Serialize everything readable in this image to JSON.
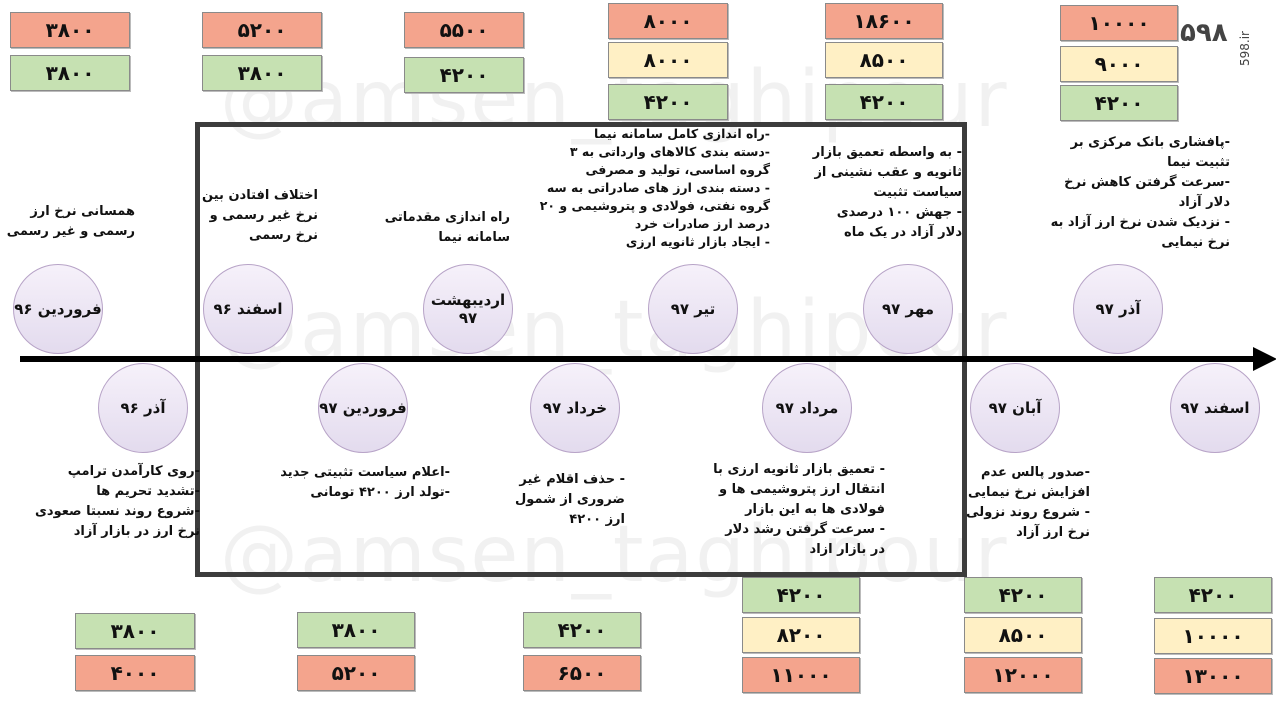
{
  "brand": {
    "logo": "۵۹۸",
    "site": "598.ir"
  },
  "events_top": [
    {
      "date": "فروردین ۹۶",
      "notes": [
        "همسانی نرخ ارز",
        "رسمی و غیر رسمی"
      ],
      "rates": [
        {
          "value": "۳۸۰۰",
          "color": "red"
        },
        {
          "value": "۳۸۰۰",
          "color": "green"
        }
      ]
    },
    {
      "date": "اسفند ۹۶",
      "notes": [
        "اختلاف افتادن بین",
        "نرخ غیر رسمی و",
        "نرخ رسمی"
      ],
      "rates": [
        {
          "value": "۵۲۰۰",
          "color": "red"
        },
        {
          "value": "۳۸۰۰",
          "color": "green"
        }
      ]
    },
    {
      "date": "اردیبهشت ۹۷",
      "notes": [
        "راه اندازی مقدماتی",
        "سامانه نیما"
      ],
      "rates": [
        {
          "value": "۵۵۰۰",
          "color": "red"
        },
        {
          "value": "۴۲۰۰",
          "color": "green"
        }
      ]
    },
    {
      "date": "تیر ۹۷",
      "notes": [
        "-راه اندازی کامل سامانه نیما",
        "-دسته بندی کالاهای وارداتی به ۳",
        "گروه اساسی، تولید و مصرفی",
        "- دسته بندی ارز های صادراتی به سه",
        "گروه نفتی، فولادی و پتروشیمی و ۲۰",
        "درصد ارز صادرات خرد",
        "- ایجاد بازار ثانویه ارزی"
      ],
      "rates": [
        {
          "value": "۸۰۰۰",
          "color": "red"
        },
        {
          "value": "۸۰۰۰",
          "color": "yellow"
        },
        {
          "value": "۴۲۰۰",
          "color": "green"
        }
      ]
    },
    {
      "date": "مهر ۹۷",
      "notes": [
        "- به واسطه تعمیق بازار",
        "ثانویه و عقب نشینی از",
        "سیاست تثبیت",
        "- جهش ۱۰۰ درصدی",
        "دلار آزاد در یک ماه"
      ],
      "rates": [
        {
          "value": "۱۸۶۰۰",
          "color": "red"
        },
        {
          "value": "۸۵۰۰",
          "color": "yellow"
        },
        {
          "value": "۴۲۰۰",
          "color": "green"
        }
      ]
    },
    {
      "date": "آذر ۹۷",
      "notes": [
        "-پافشاری بانک مرکزی بر",
        "تثبیت نیما",
        "-سرعت گرفتن کاهش نرخ",
        "دلار آزاد",
        "- نزدیک شدن نرخ ارز آزاد به",
        "نرخ نیمایی"
      ],
      "rates": [
        {
          "value": "۱۰۰۰۰",
          "color": "red"
        },
        {
          "value": "۹۰۰۰",
          "color": "yellow"
        },
        {
          "value": "۴۲۰۰",
          "color": "green"
        }
      ]
    }
  ],
  "events_bottom": [
    {
      "date": "آذر ۹۶",
      "notes": [
        "-روی کارآمدن ترامپ",
        "-تشدید تحریم ها",
        "-شروع روند نسبتا صعودی",
        "نرخ ارز در بازار آزاد"
      ],
      "rates": [
        {
          "value": "۳۸۰۰",
          "color": "green"
        },
        {
          "value": "۴۰۰۰",
          "color": "red"
        }
      ]
    },
    {
      "date": "فروردین ۹۷",
      "notes": [
        "-اعلام سیاست تثبیتی جدید",
        "-تولد ارز ۴۲۰۰ تومانی"
      ],
      "rates": [
        {
          "value": "۳۸۰۰",
          "color": "green"
        },
        {
          "value": "۵۲۰۰",
          "color": "red"
        }
      ]
    },
    {
      "date": "خرداد ۹۷",
      "notes": [
        "- حذف اقلام غیر",
        "ضروری از شمول",
        "ارز ۴۲۰۰"
      ],
      "rates": [
        {
          "value": "۴۲۰۰",
          "color": "green"
        },
        {
          "value": "۶۵۰۰",
          "color": "red"
        }
      ]
    },
    {
      "date": "مرداد ۹۷",
      "notes": [
        "- تعمیق بازار ثانویه ارزی با",
        "انتقال ارز پتروشیمی ها و",
        "فولادی ها به این بازار",
        "- سرعت گرفتن رشد دلار",
        "در بازار ازاد"
      ],
      "rates": [
        {
          "value": "۴۲۰۰",
          "color": "green"
        },
        {
          "value": "۸۲۰۰",
          "color": "yellow"
        },
        {
          "value": "۱۱۰۰۰",
          "color": "red"
        }
      ]
    },
    {
      "date": "آبان ۹۷",
      "notes": [
        "-صدور پالس عدم",
        "افزایش نرخ نیمایی",
        "- شروع روند نزولی",
        "نرخ ارز آزاد"
      ],
      "rates": [
        {
          "value": "۴۲۰۰",
          "color": "green"
        },
        {
          "value": "۸۵۰۰",
          "color": "yellow"
        },
        {
          "value": "۱۲۰۰۰",
          "color": "red"
        }
      ]
    },
    {
      "date": "اسفند ۹۷",
      "notes": [],
      "rates": [
        {
          "value": "۴۲۰۰",
          "color": "green"
        },
        {
          "value": "۱۰۰۰۰",
          "color": "yellow"
        },
        {
          "value": "۱۳۰۰۰",
          "color": "red"
        }
      ]
    }
  ]
}
